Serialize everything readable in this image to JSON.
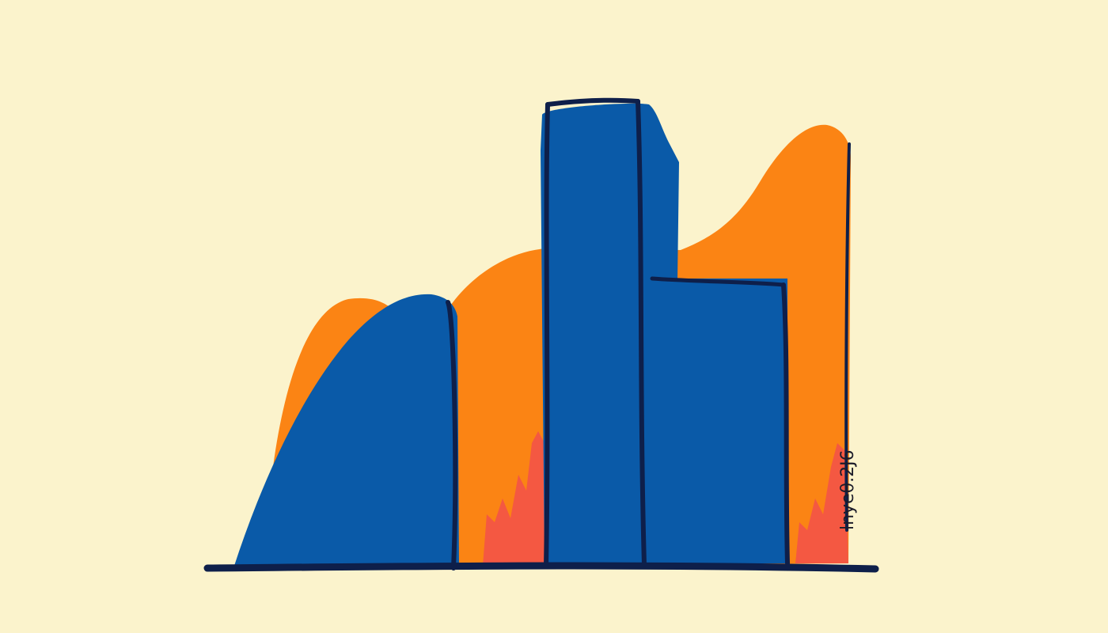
{
  "illustration": {
    "colors": {
      "background": "#fbf3cc",
      "blue": "#0a5aa8",
      "orange": "#fb8414",
      "red": "#f2504a",
      "outline": "#0e1f4a"
    },
    "signature": "lnyeθ.2J6"
  }
}
